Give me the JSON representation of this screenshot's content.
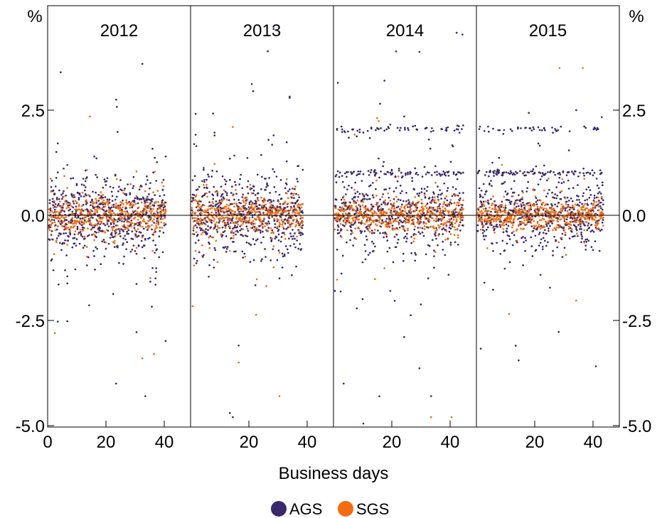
{
  "chart_data": {
    "type": "scatter",
    "y_unit_left": "%",
    "y_unit_right": "%",
    "ylim": [
      -5.0,
      5.0
    ],
    "yticks": [
      -5.0,
      -2.5,
      0.0,
      2.5
    ],
    "ytick_labels": [
      "-5.0",
      "-2.5",
      "0.0",
      "2.5"
    ],
    "xlabel": "Business days",
    "xlim": [
      0,
      45
    ],
    "panels": [
      {
        "title": "2012",
        "xticks": [
          0,
          20,
          40
        ],
        "xtick_labels": [
          "0",
          "20",
          "40"
        ],
        "days": 40
      },
      {
        "title": "2013",
        "xticks": [
          20,
          40
        ],
        "xtick_labels": [
          "20",
          "40"
        ],
        "days": 38
      },
      {
        "title": "2014",
        "xticks": [
          20,
          40
        ],
        "xtick_labels": [
          "20",
          "40"
        ],
        "days": 44
      },
      {
        "title": "2015",
        "xticks": [
          20,
          40
        ],
        "xtick_labels": [
          "20",
          "40"
        ],
        "days": 43
      }
    ],
    "series": [
      {
        "name": "AGS",
        "color": "#3a2a6b"
      },
      {
        "name": "SGS",
        "color": "#f36c0f"
      }
    ],
    "zero_line": true,
    "grid": false,
    "legend_position": "bottom",
    "notable_points": [
      {
        "panel": "2012",
        "series": "AGS",
        "x": 4,
        "y": 3.4
      },
      {
        "panel": "2012",
        "series": "AGS",
        "x": 32,
        "y": 3.6
      },
      {
        "panel": "2012",
        "series": "AGS",
        "x": 23,
        "y": 2.75
      },
      {
        "panel": "2012",
        "series": "SGS",
        "x": 14,
        "y": 2.35
      },
      {
        "panel": "2012",
        "series": "AGS",
        "x": 23,
        "y": -4.0
      },
      {
        "panel": "2012",
        "series": "AGS",
        "x": 33,
        "y": -4.3
      },
      {
        "panel": "2012",
        "series": "SGS",
        "x": 32,
        "y": -3.4
      },
      {
        "panel": "2012",
        "series": "SGS",
        "x": 36,
        "y": -3.3
      },
      {
        "panel": "2012",
        "series": "SGS",
        "x": 2,
        "y": -2.8
      },
      {
        "panel": "2013",
        "series": "AGS",
        "x": 26,
        "y": 3.9
      },
      {
        "panel": "2013",
        "series": "AGS",
        "x": 21,
        "y": 2.95
      },
      {
        "panel": "2013",
        "series": "SGS",
        "x": 14,
        "y": 2.1
      },
      {
        "panel": "2013",
        "series": "AGS",
        "x": 14,
        "y": -4.8
      },
      {
        "panel": "2013",
        "series": "AGS",
        "x": 13,
        "y": -4.7
      },
      {
        "panel": "2013",
        "series": "SGS",
        "x": 30,
        "y": -4.3
      },
      {
        "panel": "2013",
        "series": "SGS",
        "x": 16,
        "y": -3.5
      },
      {
        "panel": "2014",
        "series": "AGS",
        "x": 1,
        "y": 3.15
      },
      {
        "panel": "2014",
        "series": "AGS",
        "x": 17,
        "y": 3.2
      },
      {
        "panel": "2014",
        "series": "SGS",
        "x": 40,
        "y": -4.8
      },
      {
        "panel": "2014",
        "series": "SGS",
        "x": 33,
        "y": -4.8
      },
      {
        "panel": "2014",
        "series": "AGS",
        "x": 33,
        "y": -4.3
      },
      {
        "panel": "2014",
        "series": "AGS",
        "x": 3,
        "y": -4.0
      },
      {
        "panel": "2015",
        "series": "SGS",
        "x": 28,
        "y": 3.5
      },
      {
        "panel": "2015",
        "series": "SGS",
        "x": 36,
        "y": 3.5
      },
      {
        "panel": "2015",
        "series": "AGS",
        "x": 14,
        "y": -3.45
      },
      {
        "panel": "2015",
        "series": "AGS",
        "x": 13,
        "y": -3.1
      }
    ]
  },
  "legend": [
    {
      "label": "AGS",
      "color": "#3a2a6b"
    },
    {
      "label": "SGS",
      "color": "#f36c0f"
    }
  ]
}
